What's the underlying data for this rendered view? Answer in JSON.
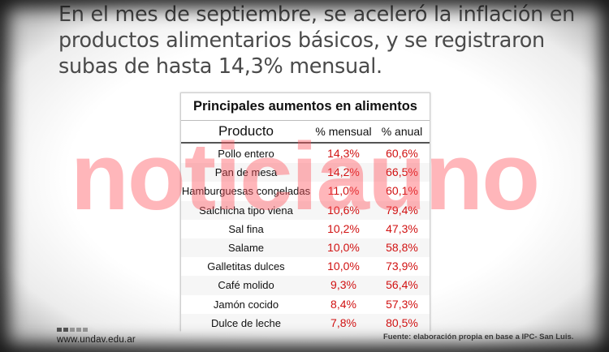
{
  "headline": "En el mes de septiembre, se aceleró la inflación en productos alimentarios básicos, y se registraron subas de hasta 14,3% mensual.",
  "table": {
    "title": "Principales aumentos en alimentos",
    "headers": {
      "product": "Producto",
      "monthly": "% mensual",
      "annual": "% anual"
    },
    "rows": [
      {
        "product": "Pollo entero",
        "monthly": "14,3%",
        "annual": "60,6%"
      },
      {
        "product": "Pan de mesa",
        "monthly": "14,2%",
        "annual": "66,5%"
      },
      {
        "product": "Hamburguesas congeladas",
        "monthly": "11,0%",
        "annual": "60,1%"
      },
      {
        "product": "Salchicha tipo viena",
        "monthly": "10,6%",
        "annual": "79,4%"
      },
      {
        "product": "Sal fina",
        "monthly": "10,2%",
        "annual": "47,3%"
      },
      {
        "product": "Salame",
        "monthly": "10,0%",
        "annual": "58,8%"
      },
      {
        "product": "Galletitas dulces",
        "monthly": "10,0%",
        "annual": "73,9%"
      },
      {
        "product": "Café molido",
        "monthly": "9,3%",
        "annual": "56,4%"
      },
      {
        "product": "Jamón cocido",
        "monthly": "8,4%",
        "annual": "57,3%"
      },
      {
        "product": "Dulce de leche",
        "monthly": "7,8%",
        "annual": "80,5%"
      }
    ]
  },
  "watermark": "noticiauno",
  "footer": {
    "site": "www.undav.edu.ar",
    "source": "Fuente: elaboración propia en base a IPC- San Luis."
  },
  "colors": {
    "value_red": "#d11212",
    "headline_gray": "#4a4a4a",
    "watermark_pink": "#ff505a"
  }
}
